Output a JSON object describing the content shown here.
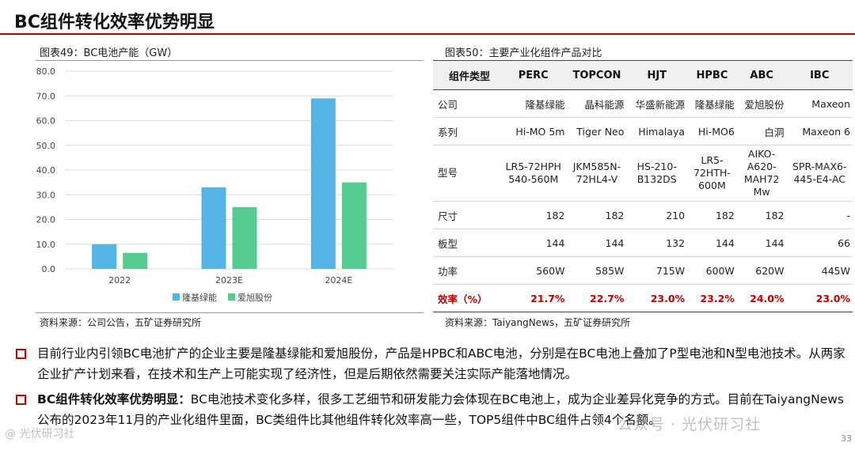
{
  "page_title": "BC组件转化效率优势明显",
  "figure49": {
    "caption": "图表49：BC电池产能（GW）",
    "source": "资料来源：公司公告，五矿证券研究所"
  },
  "chart_data": {
    "type": "bar",
    "title": "BC电池产能（GW）",
    "categories": [
      "2022",
      "2023E",
      "2024E"
    ],
    "series": [
      {
        "name": "隆基绿能",
        "values": [
          10,
          33,
          69
        ],
        "color": "#56b4e4"
      },
      {
        "name": "爱旭股份",
        "values": [
          6.5,
          25,
          35
        ],
        "color": "#57cc92"
      }
    ],
    "ylim": [
      0,
      80
    ],
    "yticks": [
      "0.0",
      "10.0",
      "20.0",
      "30.0",
      "40.0",
      "50.0",
      "60.0",
      "70.0",
      "80.0"
    ],
    "grid": true,
    "legend": "bottom"
  },
  "figure50": {
    "caption": "图表50：主要产业化组件产品对比",
    "source": "资料来源：TaiyangNews，五矿证券研究所",
    "table": {
      "header": [
        "组件类型",
        "PERC",
        "TOPCON",
        "HJT",
        "HPBC",
        "ABC",
        "IBC"
      ],
      "rows": [
        [
          "公司",
          "隆基绿能",
          "晶科能源",
          "华盛新能源",
          "隆基绿能",
          "爱旭股份",
          "Maxeon"
        ],
        [
          "系列",
          "Hi-MO 5m",
          "Tiger Neo",
          "Himalaya",
          "Hi-MO6",
          "白洞",
          "Maxeon 6"
        ],
        [
          "型号",
          "LR5-72HPH-540-560M",
          "JKM585N-72HL4-V",
          "HS-210-B132DS",
          "LR5-72HTH-600M",
          "AIKO-A620-MAH72Mw",
          "SPR-MAX6-445-E4-AC"
        ],
        [
          "尺寸",
          "182",
          "182",
          "210",
          "182",
          "182",
          "-"
        ],
        [
          "板型",
          "144",
          "144",
          "132",
          "144",
          "144",
          "66"
        ],
        [
          "功率",
          "560W",
          "585W",
          "715W",
          "600W",
          "620W",
          "445W"
        ],
        [
          "效率（%）",
          "21.7%",
          "22.7%",
          "23.0%",
          "23.2%",
          "24.0%",
          "23.0%"
        ]
      ],
      "model_lines": [
        [
          "LR5-72HPH",
          "540-560M"
        ],
        [
          "JKM585N-",
          "72HL4-V"
        ],
        [
          "HS-210-",
          "B132DS"
        ],
        [
          "LR5-",
          "72HTH-",
          "600M"
        ],
        [
          "AIKO-",
          "A620-",
          "MAH72",
          "Mw"
        ],
        [
          "SPR-MAX6-",
          "445-E4-AC"
        ]
      ]
    }
  },
  "bullets": [
    {
      "bold": "",
      "text": "目前行业内引领BC电池扩产的企业主要是隆基绿能和爱旭股份，产品是HPBC和ABC电池，分别是在BC电池上叠加了P型电池和N型电池技术。从两家企业扩产计划来看，在技术和生产上可能实现了经济性，但是后期依然需要关注实际产能落地情况。"
    },
    {
      "bold": "BC组件转化效率优势明显：",
      "text": "BC电池技术变化多样，很多工艺细节和研发能力会体现在BC电池上，成为企业差异化竞争的方式。目前在TaiyangNews公布的2023年11月的产业化组件里面，BC类组件比其他组件转化效率高一些，TOP5组件中BC组件占领4个名额。"
    }
  ],
  "watermark": "公众号 · 光伏研习社",
  "watermark_left": "@ 光伏研习社",
  "page_number": "33"
}
